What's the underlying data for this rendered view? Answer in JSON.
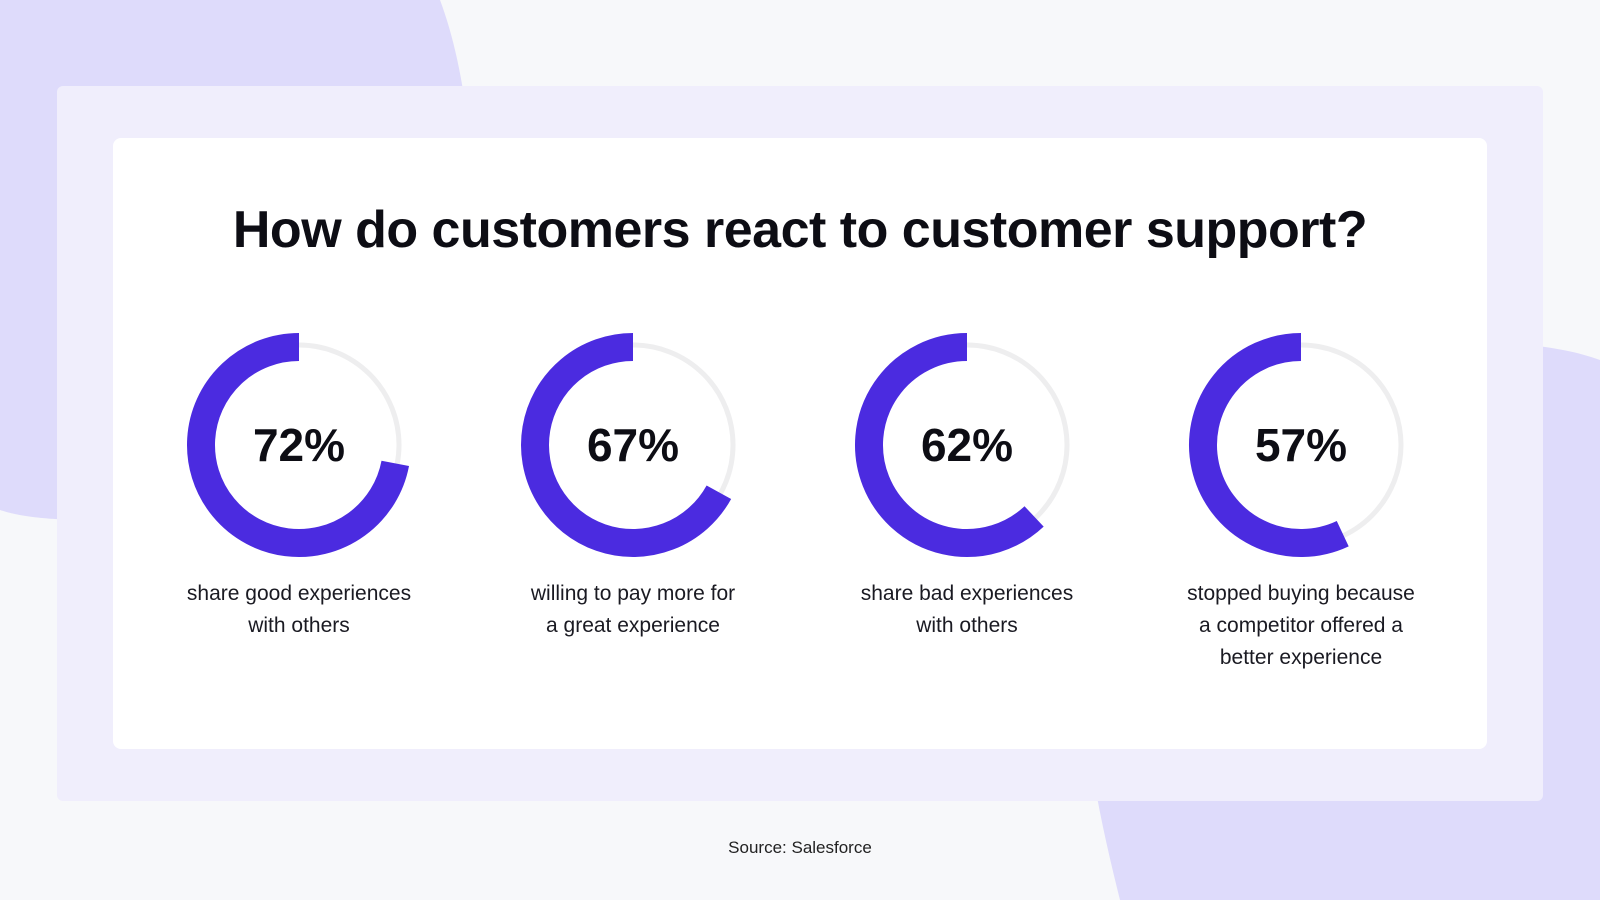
{
  "colors": {
    "accent": "#4b2be0",
    "track": "#eeeeef",
    "background_blob": "#dedbfb"
  },
  "chart_data": {
    "type": "donut",
    "title": "How do customers react to customer support?",
    "unit": "%",
    "items": [
      {
        "value": 72,
        "display": "72%",
        "label": "share good experiences with others",
        "lines": [
          "share good experiences",
          "with others"
        ]
      },
      {
        "value": 67,
        "display": "67%",
        "label": "willing to pay more for a great experience",
        "lines": [
          "willing to pay more for",
          "a great experience"
        ]
      },
      {
        "value": 62,
        "display": "62%",
        "label": "share bad experiences with others",
        "lines": [
          "share bad experiences",
          "with others"
        ]
      },
      {
        "value": 57,
        "display": "57%",
        "label": "stopped buying because a competitor offered a better experience",
        "lines": [
          "stopped buying because",
          "a competitor offered a",
          "better experience"
        ]
      }
    ]
  },
  "source": "Source: Salesforce"
}
